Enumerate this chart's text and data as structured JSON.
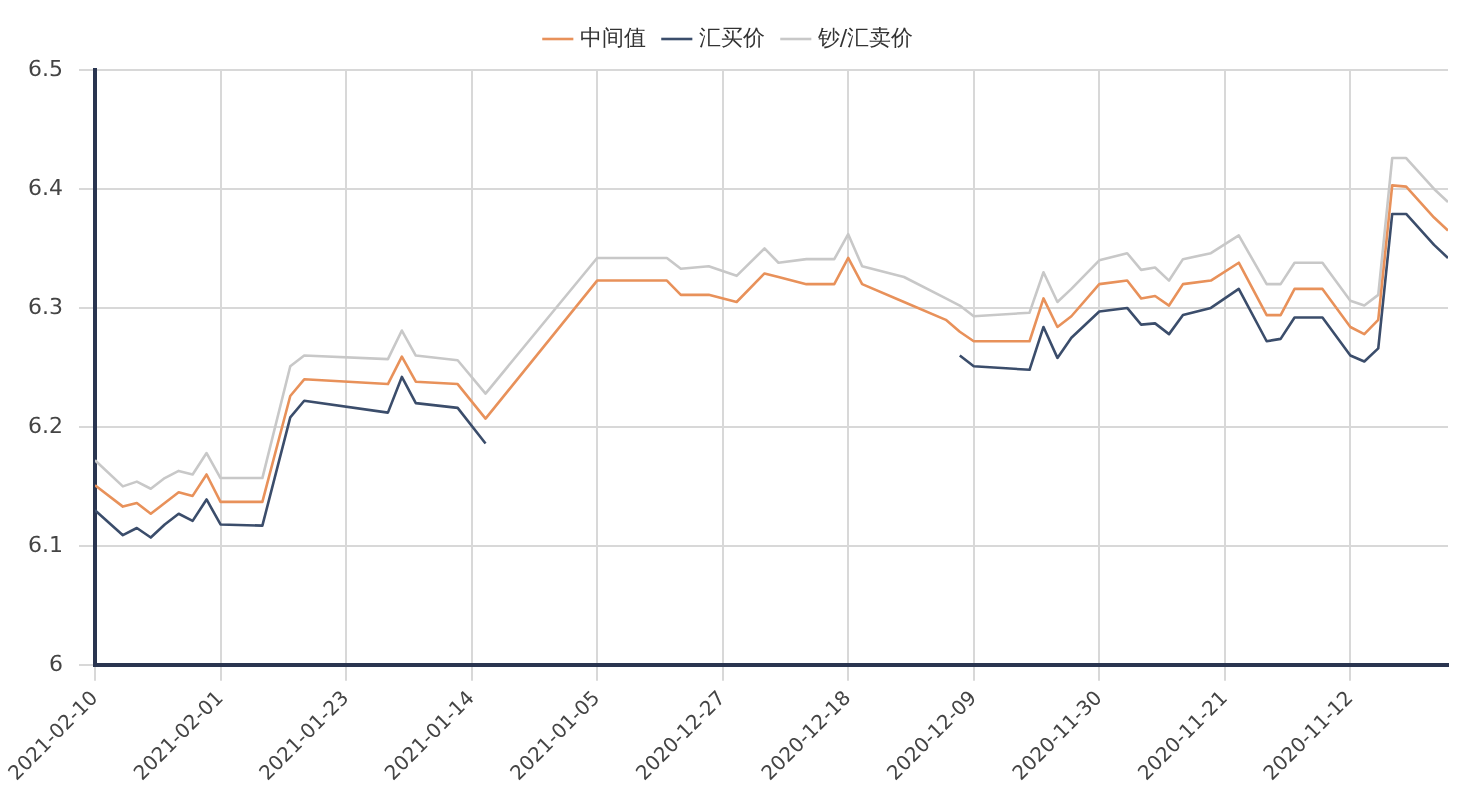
{
  "chart_data": {
    "type": "line",
    "x": [
      "2021-02-10",
      "2021-02-08",
      "2021-02-07",
      "2021-02-06",
      "2021-02-05",
      "2021-02-04",
      "2021-02-03",
      "2021-02-02",
      "2021-02-01",
      "2021-01-29",
      "2021-01-27",
      "2021-01-26",
      "2021-01-20",
      "2021-01-19",
      "2021-01-18",
      "2021-01-15",
      "2021-01-13",
      "2021-01-05",
      "2020-12-31",
      "2020-12-30",
      "2020-12-28",
      "2020-12-26",
      "2020-12-24",
      "2020-12-23",
      "2020-12-21",
      "2020-12-19",
      "2020-12-18",
      "2020-12-17",
      "2020-12-14",
      "2020-12-11",
      "2020-12-10",
      "2020-12-09",
      "2020-12-05",
      "2020-12-04",
      "2020-12-03",
      "2020-12-02",
      "2020-11-30",
      "2020-11-28",
      "2020-11-27",
      "2020-11-26",
      "2020-11-25",
      "2020-11-24",
      "2020-11-22",
      "2020-11-20",
      "2020-11-18",
      "2020-11-17",
      "2020-11-16",
      "2020-11-14",
      "2020-11-12",
      "2020-11-11",
      "2020-11-10",
      "2020-11-09",
      "2020-11-08",
      "2020-11-06",
      "2020-11-05"
    ],
    "series": [
      {
        "name": "中间值",
        "color": "#e8915a",
        "values": [
          6.151,
          6.133,
          6.136,
          6.127,
          6.136,
          6.145,
          6.142,
          6.16,
          6.137,
          6.137,
          6.226,
          6.24,
          6.236,
          6.259,
          6.238,
          6.236,
          6.207,
          6.323,
          6.323,
          6.311,
          6.311,
          6.305,
          6.329,
          6.326,
          6.32,
          6.32,
          6.342,
          6.32,
          6.305,
          6.29,
          6.28,
          6.272,
          6.272,
          6.308,
          6.284,
          6.293,
          6.32,
          6.323,
          6.308,
          6.31,
          6.302,
          6.32,
          6.323,
          6.338,
          6.294,
          6.294,
          6.316,
          6.316,
          6.284,
          6.278,
          6.29,
          6.403,
          6.402,
          6.376,
          6.365
        ]
      },
      {
        "name": "汇买价",
        "color": "#3b4d6b",
        "values": [
          6.13,
          6.109,
          6.115,
          6.107,
          6.118,
          6.127,
          6.121,
          6.139,
          6.118,
          6.117,
          6.208,
          6.222,
          6.212,
          6.242,
          6.22,
          6.216,
          6.186,
          null,
          null,
          null,
          null,
          null,
          null,
          null,
          null,
          null,
          null,
          null,
          null,
          null,
          6.26,
          6.251,
          6.248,
          6.284,
          6.258,
          6.275,
          6.297,
          6.3,
          6.286,
          6.287,
          6.278,
          6.294,
          6.3,
          6.316,
          6.272,
          6.274,
          6.292,
          6.292,
          6.26,
          6.255,
          6.266,
          6.379,
          6.379,
          6.353,
          6.342
        ]
      },
      {
        "name": "钞/汇卖价",
        "color": "#c8c8c8",
        "values": [
          6.172,
          6.15,
          6.154,
          6.148,
          6.157,
          6.163,
          6.16,
          6.178,
          6.157,
          6.157,
          6.251,
          6.26,
          6.257,
          6.281,
          6.26,
          6.256,
          6.228,
          6.342,
          6.342,
          6.333,
          6.335,
          6.327,
          6.35,
          6.338,
          6.341,
          6.341,
          6.362,
          6.335,
          6.326,
          6.308,
          6.302,
          6.293,
          6.296,
          6.33,
          6.305,
          6.316,
          6.34,
          6.346,
          6.332,
          6.334,
          6.323,
          6.341,
          6.346,
          6.361,
          6.32,
          6.32,
          6.338,
          6.338,
          6.306,
          6.302,
          6.311,
          6.426,
          6.426,
          6.4,
          6.389
        ]
      }
    ],
    "xlim": [
      "2021-02-10",
      "2020-11-05"
    ],
    "xticks": [
      "2021-02-10",
      "2021-02-01",
      "2021-01-23",
      "2021-01-14",
      "2021-01-05",
      "2020-12-27",
      "2020-12-18",
      "2020-12-09",
      "2020-11-30",
      "2020-11-21",
      "2020-11-12"
    ],
    "ylim": [
      6,
      6.5
    ],
    "yticks": [
      6,
      6.1,
      6.2,
      6.3,
      6.4,
      6.5
    ],
    "grid": true,
    "legend": "top",
    "marker": "none",
    "line_style": "solid"
  }
}
